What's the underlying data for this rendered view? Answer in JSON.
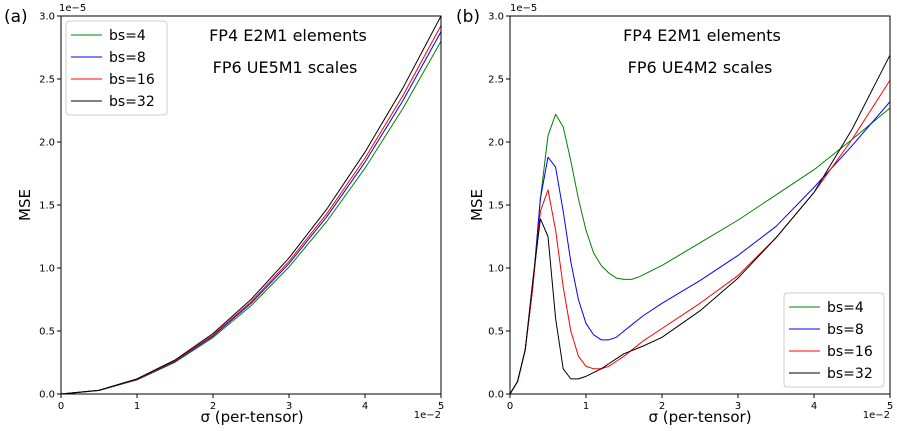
{
  "chart_data": [
    {
      "type": "line",
      "panel_label": "(a)",
      "xlabel": "σ (per-tensor)",
      "ylabel": "MSE",
      "x_offset_text": "1e−2",
      "y_offset_text": "1e−5",
      "xlim": [
        0,
        5
      ],
      "ylim": [
        0,
        3.0
      ],
      "xticks": [
        "0",
        "1",
        "2",
        "3",
        "4",
        "5"
      ],
      "yticks": [
        "0.0",
        "0.5",
        "1.0",
        "1.5",
        "2.0",
        "2.5",
        "3.0"
      ],
      "annotations": [
        "FP4 E2M1 elements",
        "FP6 UE5M1 scales"
      ],
      "annotation_position": "top-center",
      "legend_position": "top-left",
      "grid": false,
      "x": [
        0,
        0.5,
        1,
        1.5,
        2,
        2.5,
        3,
        3.5,
        4,
        4.5,
        5
      ],
      "series": [
        {
          "name": "bs=4",
          "color": "#008000",
          "values": [
            0,
            0.028,
            0.112,
            0.252,
            0.448,
            0.7,
            1.008,
            1.372,
            1.792,
            2.268,
            2.8
          ]
        },
        {
          "name": "bs=8",
          "color": "#0000ff",
          "values": [
            0,
            0.029,
            0.115,
            0.259,
            0.46,
            0.719,
            1.035,
            1.409,
            1.84,
            2.329,
            2.875
          ]
        },
        {
          "name": "bs=16",
          "color": "#ff0000",
          "values": [
            0,
            0.029,
            0.117,
            0.264,
            0.468,
            0.731,
            1.053,
            1.433,
            1.872,
            2.369,
            2.925
          ]
        },
        {
          "name": "bs=32",
          "color": "#000000",
          "values": [
            0,
            0.03,
            0.12,
            0.27,
            0.48,
            0.75,
            1.08,
            1.47,
            1.92,
            2.43,
            3.0
          ]
        }
      ]
    },
    {
      "type": "line",
      "panel_label": "(b)",
      "xlabel": "σ (per-tensor)",
      "ylabel": "MSE",
      "x_offset_text": "1e−2",
      "y_offset_text": "1e−5",
      "xlim": [
        0,
        5
      ],
      "ylim": [
        0,
        3.0
      ],
      "xticks": [
        "0",
        "1",
        "2",
        "3",
        "4",
        "5"
      ],
      "yticks": [
        "0.0",
        "0.5",
        "1.0",
        "1.5",
        "2.0",
        "2.5",
        "3.0"
      ],
      "annotations": [
        "FP4 E2M1 elements",
        "FP6 UE4M2 scales"
      ],
      "annotation_position": "top-center",
      "legend_position": "bottom-right",
      "grid": false,
      "series": [
        {
          "name": "bs=4",
          "color": "#008000",
          "x": [
            0,
            0.1,
            0.2,
            0.3,
            0.4,
            0.5,
            0.6,
            0.7,
            0.8,
            0.9,
            1.0,
            1.1,
            1.2,
            1.3,
            1.4,
            1.5,
            1.6,
            1.7,
            2.0,
            2.5,
            3.0,
            3.5,
            4.0,
            4.5,
            5.0
          ],
          "values": [
            0,
            0.1,
            0.35,
            0.85,
            1.55,
            2.05,
            2.22,
            2.12,
            1.85,
            1.55,
            1.3,
            1.12,
            1.02,
            0.96,
            0.92,
            0.91,
            0.91,
            0.93,
            1.02,
            1.2,
            1.38,
            1.58,
            1.78,
            2.02,
            2.27
          ]
        },
        {
          "name": "bs=8",
          "color": "#0000ff",
          "x": [
            0,
            0.1,
            0.2,
            0.3,
            0.4,
            0.5,
            0.6,
            0.7,
            0.8,
            0.9,
            1.0,
            1.1,
            1.2,
            1.3,
            1.4,
            1.5,
            1.75,
            2.0,
            2.5,
            3.0,
            3.5,
            4.0,
            4.5,
            5.0
          ],
          "values": [
            0,
            0.1,
            0.35,
            0.85,
            1.55,
            1.88,
            1.8,
            1.45,
            1.05,
            0.75,
            0.56,
            0.47,
            0.43,
            0.43,
            0.45,
            0.5,
            0.62,
            0.72,
            0.9,
            1.1,
            1.33,
            1.64,
            1.97,
            2.32
          ]
        },
        {
          "name": "bs=16",
          "color": "#ff0000",
          "x": [
            0,
            0.1,
            0.2,
            0.3,
            0.4,
            0.5,
            0.6,
            0.7,
            0.8,
            0.9,
            1.0,
            1.1,
            1.2,
            1.3,
            1.4,
            1.5,
            1.75,
            2.0,
            2.5,
            3.0,
            3.5,
            4.0,
            4.5,
            5.0
          ],
          "values": [
            0,
            0.1,
            0.35,
            0.85,
            1.45,
            1.62,
            1.3,
            0.85,
            0.5,
            0.3,
            0.22,
            0.2,
            0.2,
            0.22,
            0.26,
            0.3,
            0.42,
            0.52,
            0.72,
            0.94,
            1.24,
            1.6,
            2.02,
            2.49
          ]
        },
        {
          "name": "bs=32",
          "color": "#000000",
          "x": [
            0,
            0.1,
            0.2,
            0.3,
            0.4,
            0.5,
            0.6,
            0.7,
            0.8,
            0.9,
            1.0,
            1.1,
            1.2,
            1.3,
            1.4,
            1.5,
            1.75,
            2.0,
            2.5,
            3.0,
            3.5,
            4.0,
            4.5,
            5.0
          ],
          "values": [
            0,
            0.1,
            0.35,
            0.9,
            1.39,
            1.25,
            0.6,
            0.2,
            0.12,
            0.12,
            0.14,
            0.17,
            0.2,
            0.24,
            0.28,
            0.32,
            0.38,
            0.45,
            0.66,
            0.92,
            1.24,
            1.6,
            2.1,
            2.69
          ]
        }
      ]
    }
  ]
}
